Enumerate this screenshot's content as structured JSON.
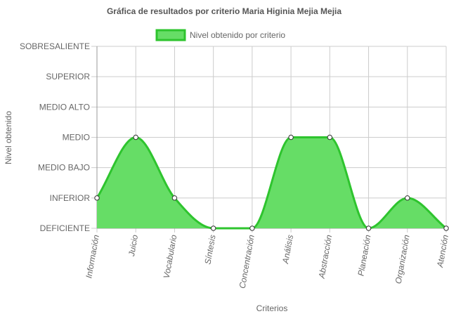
{
  "chart_data": {
    "type": "area",
    "title": "Gráfica de resultados por criterio Maria Higinia Mejia Mejia",
    "xlabel": "Criterios",
    "ylabel": "Nivel obtenido",
    "y_levels": [
      "DEFICIENTE",
      "INFERIOR",
      "MEDIO BAJO",
      "MEDIO",
      "MEDIO ALTO",
      "SUPERIOR",
      "SOBRESALIENTE"
    ],
    "ylim": [
      0,
      6
    ],
    "categories": [
      "Información",
      "Juicio",
      "Vocabulario",
      "Síntesis",
      "Concentración",
      "Análisis",
      "Abstracción",
      "Planeación",
      "Organización",
      "Atención"
    ],
    "series": [
      {
        "name": "Nivel obtenido por criterio",
        "values": [
          1,
          3,
          1,
          0,
          0,
          3,
          3,
          0,
          1,
          0
        ]
      }
    ],
    "grid": true,
    "legend": "top-center",
    "x_tick_rotation": "vertical",
    "colors": {
      "fill": "#66dd66",
      "line": "#2ec42e",
      "point_fill": "#ffffff",
      "point_stroke": "#333333",
      "grid": "#cccccc",
      "axis": "#999999",
      "title": "#555555",
      "tick_text": "#666666"
    }
  }
}
